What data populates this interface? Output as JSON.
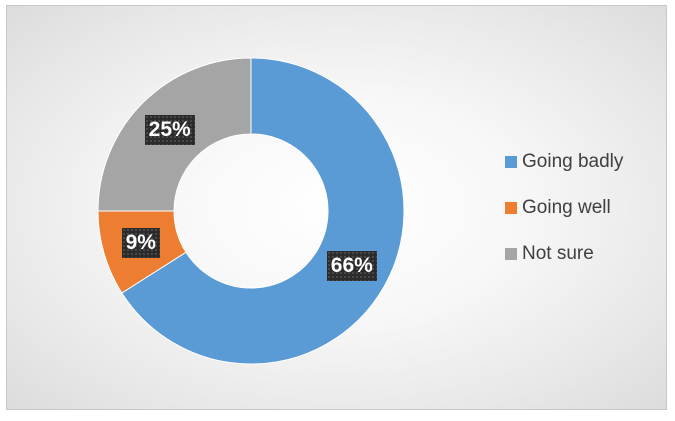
{
  "chart_data": {
    "type": "pie",
    "variant": "doughnut",
    "categories": [
      "Going badly",
      "Going well",
      "Not sure"
    ],
    "values": [
      66,
      9,
      25
    ],
    "data_labels": [
      "66%",
      "9%",
      "25%"
    ],
    "colors": [
      "#5b9bd5",
      "#ed7d31",
      "#a5a5a5"
    ],
    "legend_position": "right",
    "start_angle": "top, clockwise"
  }
}
